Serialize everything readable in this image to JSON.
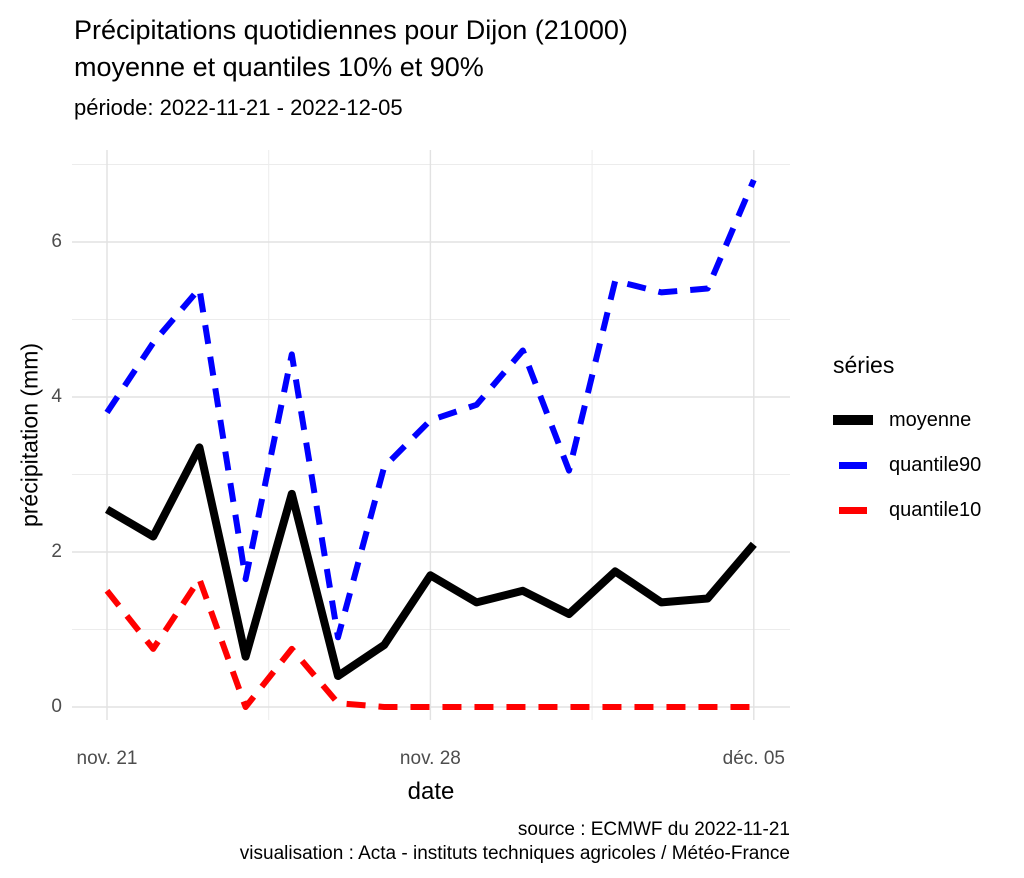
{
  "title_line1": "Précipitations quotidiennes pour Dijon (21000)",
  "title_line2": "moyenne et quantiles 10% et 90%",
  "subtitle": "période: 2022-11-21 - 2022-12-05",
  "caption_line1": "source : ECMWF du 2022-11-21",
  "caption_line2": "visualisation : Acta - instituts techniques agricoles / Météo-France",
  "chart_data": {
    "type": "line",
    "title": "Précipitations quotidiennes pour Dijon (21000) moyenne et quantiles 10% et 90%",
    "xlabel": "date",
    "ylabel": "précipitation (mm)",
    "x": [
      "2022-11-21",
      "2022-11-22",
      "2022-11-23",
      "2022-11-24",
      "2022-11-25",
      "2022-11-26",
      "2022-11-27",
      "2022-11-28",
      "2022-11-29",
      "2022-11-30",
      "2022-12-01",
      "2022-12-02",
      "2022-12-03",
      "2022-12-04",
      "2022-12-05"
    ],
    "x_ticks": [
      {
        "day": 0,
        "label": "nov. 21"
      },
      {
        "day": 7,
        "label": "nov. 28"
      },
      {
        "day": 14,
        "label": "déc. 05"
      }
    ],
    "x_minor_days": [
      3.5,
      10.5
    ],
    "y_major_ticks": [
      0,
      2,
      4,
      6
    ],
    "y_minor_ticks": [
      1,
      3,
      5,
      7
    ],
    "ylim": [
      0,
      7.2
    ],
    "grid": true,
    "legend_title": "séries",
    "legend_position": "right",
    "colors": {
      "grid_major": "#e2e2e2",
      "grid_minor": "#ececec",
      "tick_text": "#4d4d4d"
    },
    "series": [
      {
        "name": "moyenne",
        "color": "#000000",
        "style": "solid",
        "values": [
          2.55,
          2.2,
          3.35,
          0.65,
          2.75,
          0.4,
          0.8,
          1.7,
          1.35,
          1.5,
          1.2,
          1.75,
          1.35,
          1.4,
          2.1
        ]
      },
      {
        "name": "quantile90",
        "color": "#0000ff",
        "style": "dashed",
        "values": [
          3.8,
          4.7,
          5.4,
          1.65,
          4.55,
          0.9,
          3.1,
          3.7,
          3.9,
          4.6,
          3.05,
          5.5,
          5.35,
          5.4,
          6.8
        ]
      },
      {
        "name": "quantile10",
        "color": "#ff0000",
        "style": "dashed",
        "values": [
          1.5,
          0.75,
          1.65,
          0.0,
          0.75,
          0.05,
          0.0,
          0.0,
          0.0,
          0.0,
          0.0,
          0.0,
          0.0,
          0.0,
          0.0
        ]
      }
    ]
  }
}
